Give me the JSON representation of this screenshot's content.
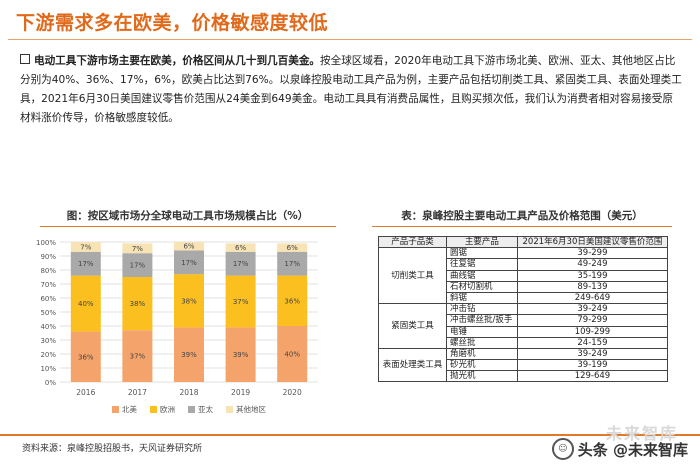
{
  "header": {
    "title": "下游需求多在欧美，价格敏感度较低"
  },
  "summary": {
    "bold_lead": "电动工具下游市场主要在欧美，价格区间从几十到几百美金。",
    "body": "按全球区域看，2020年电动工具下游市场北美、欧洲、亚太、其他地区占比分别为40%、36%、17%，6%，欧美占比达到76%。以泉峰控股电动工具产品为例，主要产品包括切削类工具、紧固类工具、表面处理类工具，2021年6月30日美国建议零售价范围从24美金到649美金。电动工具具有消费品属性，且购买频次低，我们认为消费者相对容易接受原材料涨价传导，价格敏感度较低。"
  },
  "chart_data": {
    "type": "bar",
    "stacked": true,
    "title": "图：按区域市场分全球电动工具市场规模占比（%）",
    "categories": [
      "2016",
      "2017",
      "2018",
      "2019",
      "2020"
    ],
    "ylim": [
      0,
      100
    ],
    "yticks": [
      "0%",
      "10%",
      "20%",
      "30%",
      "40%",
      "50%",
      "60%",
      "70%",
      "80%",
      "90%",
      "100%"
    ],
    "grid": true,
    "legend_position": "bottom",
    "series": [
      {
        "name": "北美",
        "color": "#f4a46a",
        "values": [
          36,
          37,
          39,
          39,
          40
        ],
        "labels": [
          "36%",
          "37%",
          "39%",
          "39%",
          "40%"
        ]
      },
      {
        "name": "欧洲",
        "color": "#fbbf1f",
        "values": [
          40,
          38,
          38,
          37,
          36
        ],
        "labels": [
          "40%",
          "38%",
          "38%",
          "37%",
          "36%"
        ]
      },
      {
        "name": "亚太",
        "color": "#a9a9a9",
        "values": [
          17,
          17,
          17,
          17,
          17
        ],
        "labels": [
          "17%",
          "17%",
          "17%",
          "17%",
          "17%"
        ]
      },
      {
        "name": "其他地区",
        "color": "#f7e3b4",
        "values": [
          7,
          7,
          6,
          6,
          6
        ],
        "labels": [
          "7%",
          "7%",
          "6%",
          "6%",
          "6%"
        ]
      }
    ]
  },
  "table": {
    "title": "表：泉峰控股主要电动工具产品及价格范围（美元）",
    "headers": [
      "产品子品类",
      "主要产品",
      "2021年6月30日美国建议零售价范围"
    ],
    "groups": [
      {
        "category": "切削类工具",
        "rows": [
          {
            "product": "圆锯",
            "price": "39-299"
          },
          {
            "product": "往复锯",
            "price": "49-249"
          },
          {
            "product": "曲线锯",
            "price": "35-199"
          },
          {
            "product": "石材切割机",
            "price": "89-139"
          },
          {
            "product": "斜锯",
            "price": "249-649"
          }
        ]
      },
      {
        "category": "紧固类工具",
        "rows": [
          {
            "product": "冲击钻",
            "price": "39-249"
          },
          {
            "product": "冲击螺丝批/扳手",
            "price": "79-299"
          },
          {
            "product": "电锤",
            "price": "109-299"
          },
          {
            "product": "螺丝批",
            "price": "24-159"
          }
        ]
      },
      {
        "category": "表面处理类工具",
        "rows": [
          {
            "product": "角磨机",
            "price": "39-249"
          },
          {
            "product": "砂光机",
            "price": "39-199"
          },
          {
            "product": "抛光机",
            "price": "129-649"
          }
        ]
      }
    ]
  },
  "footer": {
    "source": "资料来源：泉峰控股招股书，天风证券研究所",
    "watermark": "头条 @未来智库",
    "watermark_faded": "未来智库"
  }
}
